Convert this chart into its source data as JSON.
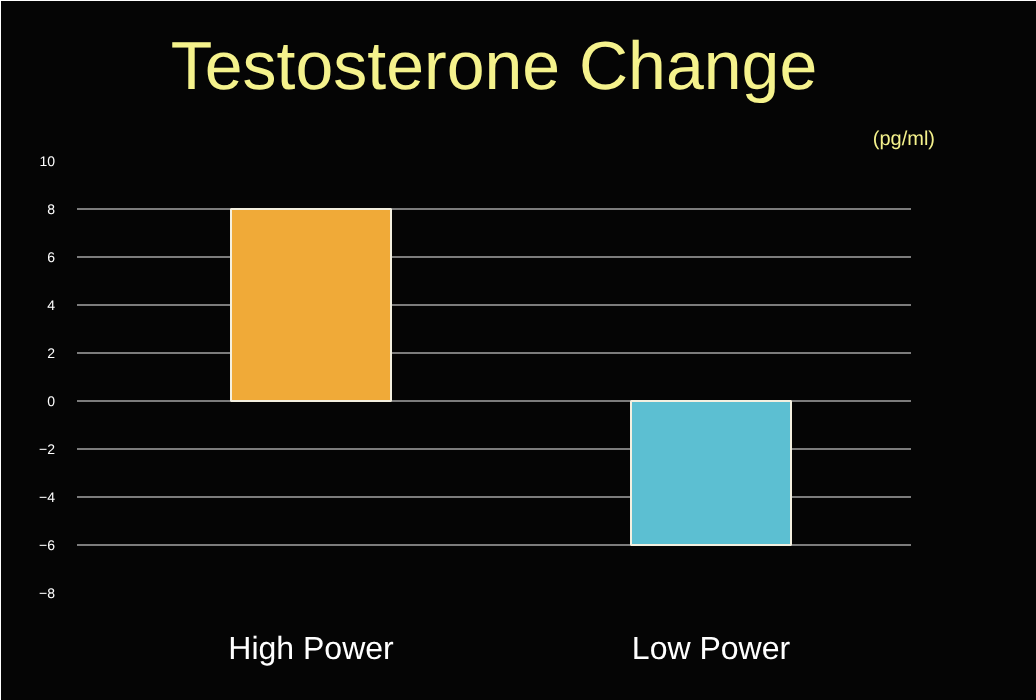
{
  "chart_data": {
    "type": "bar",
    "title": "Testosterone Change",
    "subtitle": "(pg/ml)",
    "categories": [
      "High Power",
      "Low Power"
    ],
    "values": [
      8,
      -6
    ],
    "colors": [
      "#f0aa38",
      "#5cbfd2"
    ],
    "ylim": [
      -8,
      10
    ],
    "yticks": [
      -8,
      -6,
      -4,
      -2,
      0,
      2,
      4,
      6,
      8,
      10
    ],
    "grid": "y"
  }
}
